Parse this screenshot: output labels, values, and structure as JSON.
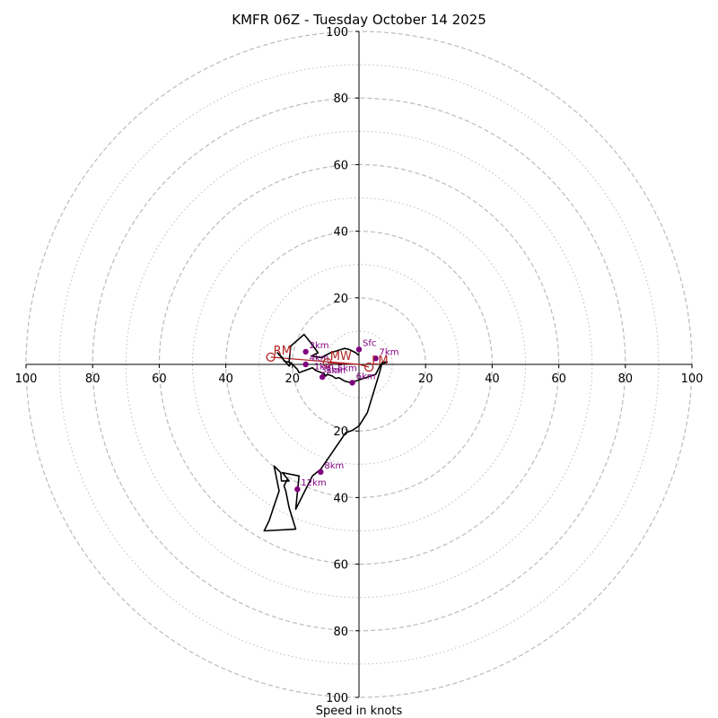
{
  "chart_data": {
    "type": "hodograph",
    "title": "KMFR 06Z - Tuesday October 14 2025",
    "xlabel": "Speed in knots",
    "range": [
      -100,
      100
    ],
    "ring_major": [
      20,
      40,
      60,
      80,
      100
    ],
    "ring_minor": [
      10,
      30,
      50,
      70,
      90
    ],
    "x_ticks": [
      {
        "value": -100,
        "label": "100"
      },
      {
        "value": -80,
        "label": "80"
      },
      {
        "value": -60,
        "label": "60"
      },
      {
        "value": -40,
        "label": "40"
      },
      {
        "value": -20,
        "label": "20"
      },
      {
        "value": 20,
        "label": "20"
      },
      {
        "value": 40,
        "label": "40"
      },
      {
        "value": 60,
        "label": "60"
      },
      {
        "value": 80,
        "label": "80"
      },
      {
        "value": 100,
        "label": "100"
      }
    ],
    "y_ticks": [
      {
        "value": 100,
        "label": "100"
      },
      {
        "value": 80,
        "label": "80"
      },
      {
        "value": 60,
        "label": "60"
      },
      {
        "value": 40,
        "label": "40"
      },
      {
        "value": 20,
        "label": "20"
      },
      {
        "value": -20,
        "label": "20"
      },
      {
        "value": -40,
        "label": "40"
      },
      {
        "value": -60,
        "label": "60"
      },
      {
        "value": -80,
        "label": "80"
      },
      {
        "value": -100,
        "label": "100"
      }
    ],
    "trace": {
      "name": "hodograph trace",
      "color": "#000000",
      "u": [
        0.0,
        -1.0,
        -3.0,
        -4.3,
        -8.5,
        -10.5,
        -10.8,
        -11.0,
        -12.5,
        -14.3,
        -12.3,
        -14.5,
        -16.5,
        -20.5,
        -21.0,
        -20.5,
        -21.0,
        -24.5,
        -23.0,
        -22.5,
        -20.5,
        -18.5,
        -18.0,
        -14.0,
        -13.0,
        -10.5,
        -10.0,
        -9.5,
        -8.0,
        -7.0,
        -6.0,
        -4.3,
        -2.5,
        5.0,
        6.5,
        8.5,
        7.0,
        6.0,
        2.5,
        0.0,
        -2.0,
        -4.0,
        -11.5,
        -14.0,
        -19.0,
        -18.0,
        -23.0,
        -21.0,
        -23.3,
        -23.5,
        -25.5,
        -24.0,
        -26.0,
        -27.0,
        -28.5,
        -19.0,
        -21.0,
        -22.0,
        -22.5,
        -21.5
      ],
      "v": [
        2.7,
        3.5,
        4.5,
        4.8,
        3.5,
        2.5,
        2.2,
        2.0,
        2.2,
        2.5,
        3.5,
        6.5,
        9.0,
        5.5,
        0.7,
        0.2,
        -0.5,
        3.5,
        2.0,
        1.0,
        0.5,
        -1.5,
        -2.5,
        -1.0,
        -1.8,
        -2.8,
        -3.5,
        -3.0,
        -3.5,
        -4.2,
        -4.0,
        -5.0,
        -5.5,
        -3.0,
        0.0,
        0.7,
        0.7,
        -3.0,
        -14.5,
        -18.5,
        -19.8,
        -20.5,
        -31.5,
        -33.5,
        -43.5,
        -33.5,
        -32.5,
        -35.0,
        -35.0,
        -32.5,
        -30.5,
        -38.0,
        -44.0,
        -47.0,
        -50.0,
        -49.5,
        -43.0,
        -38.0,
        -36.5,
        -34.5
      ]
    },
    "height_markers": [
      {
        "label": "Sfc",
        "u": 0.0,
        "v": 4.5
      },
      {
        "label": "2km",
        "u": -16.0,
        "v": 3.8
      },
      {
        "label": "4km",
        "u": -16.0,
        "v": 0.0
      },
      {
        "label": "5km",
        "u": -11.0,
        "v": -3.8
      },
      {
        "label": "6km",
        "u": -2.0,
        "v": -5.5
      },
      {
        "label": "7km",
        "u": 5.0,
        "v": 1.8
      },
      {
        "label": "8km",
        "u": -11.5,
        "v": -32.3
      },
      {
        "label": "12km",
        "u": -18.5,
        "v": -37.5
      }
    ],
    "motion_markers": [
      {
        "label": "RM",
        "u": -26.5,
        "v": 2.2
      },
      {
        "label": "MW",
        "u": -9.5,
        "v": 0.5
      },
      {
        "label": "LM",
        "u": 3.0,
        "v": -0.8
      }
    ],
    "motion_vector_color": "#b22222",
    "height_marker_color": "#800080",
    "grid_color": "#bbbbbb",
    "inner_labels": [
      "1km",
      "3km",
      "5km"
    ]
  }
}
